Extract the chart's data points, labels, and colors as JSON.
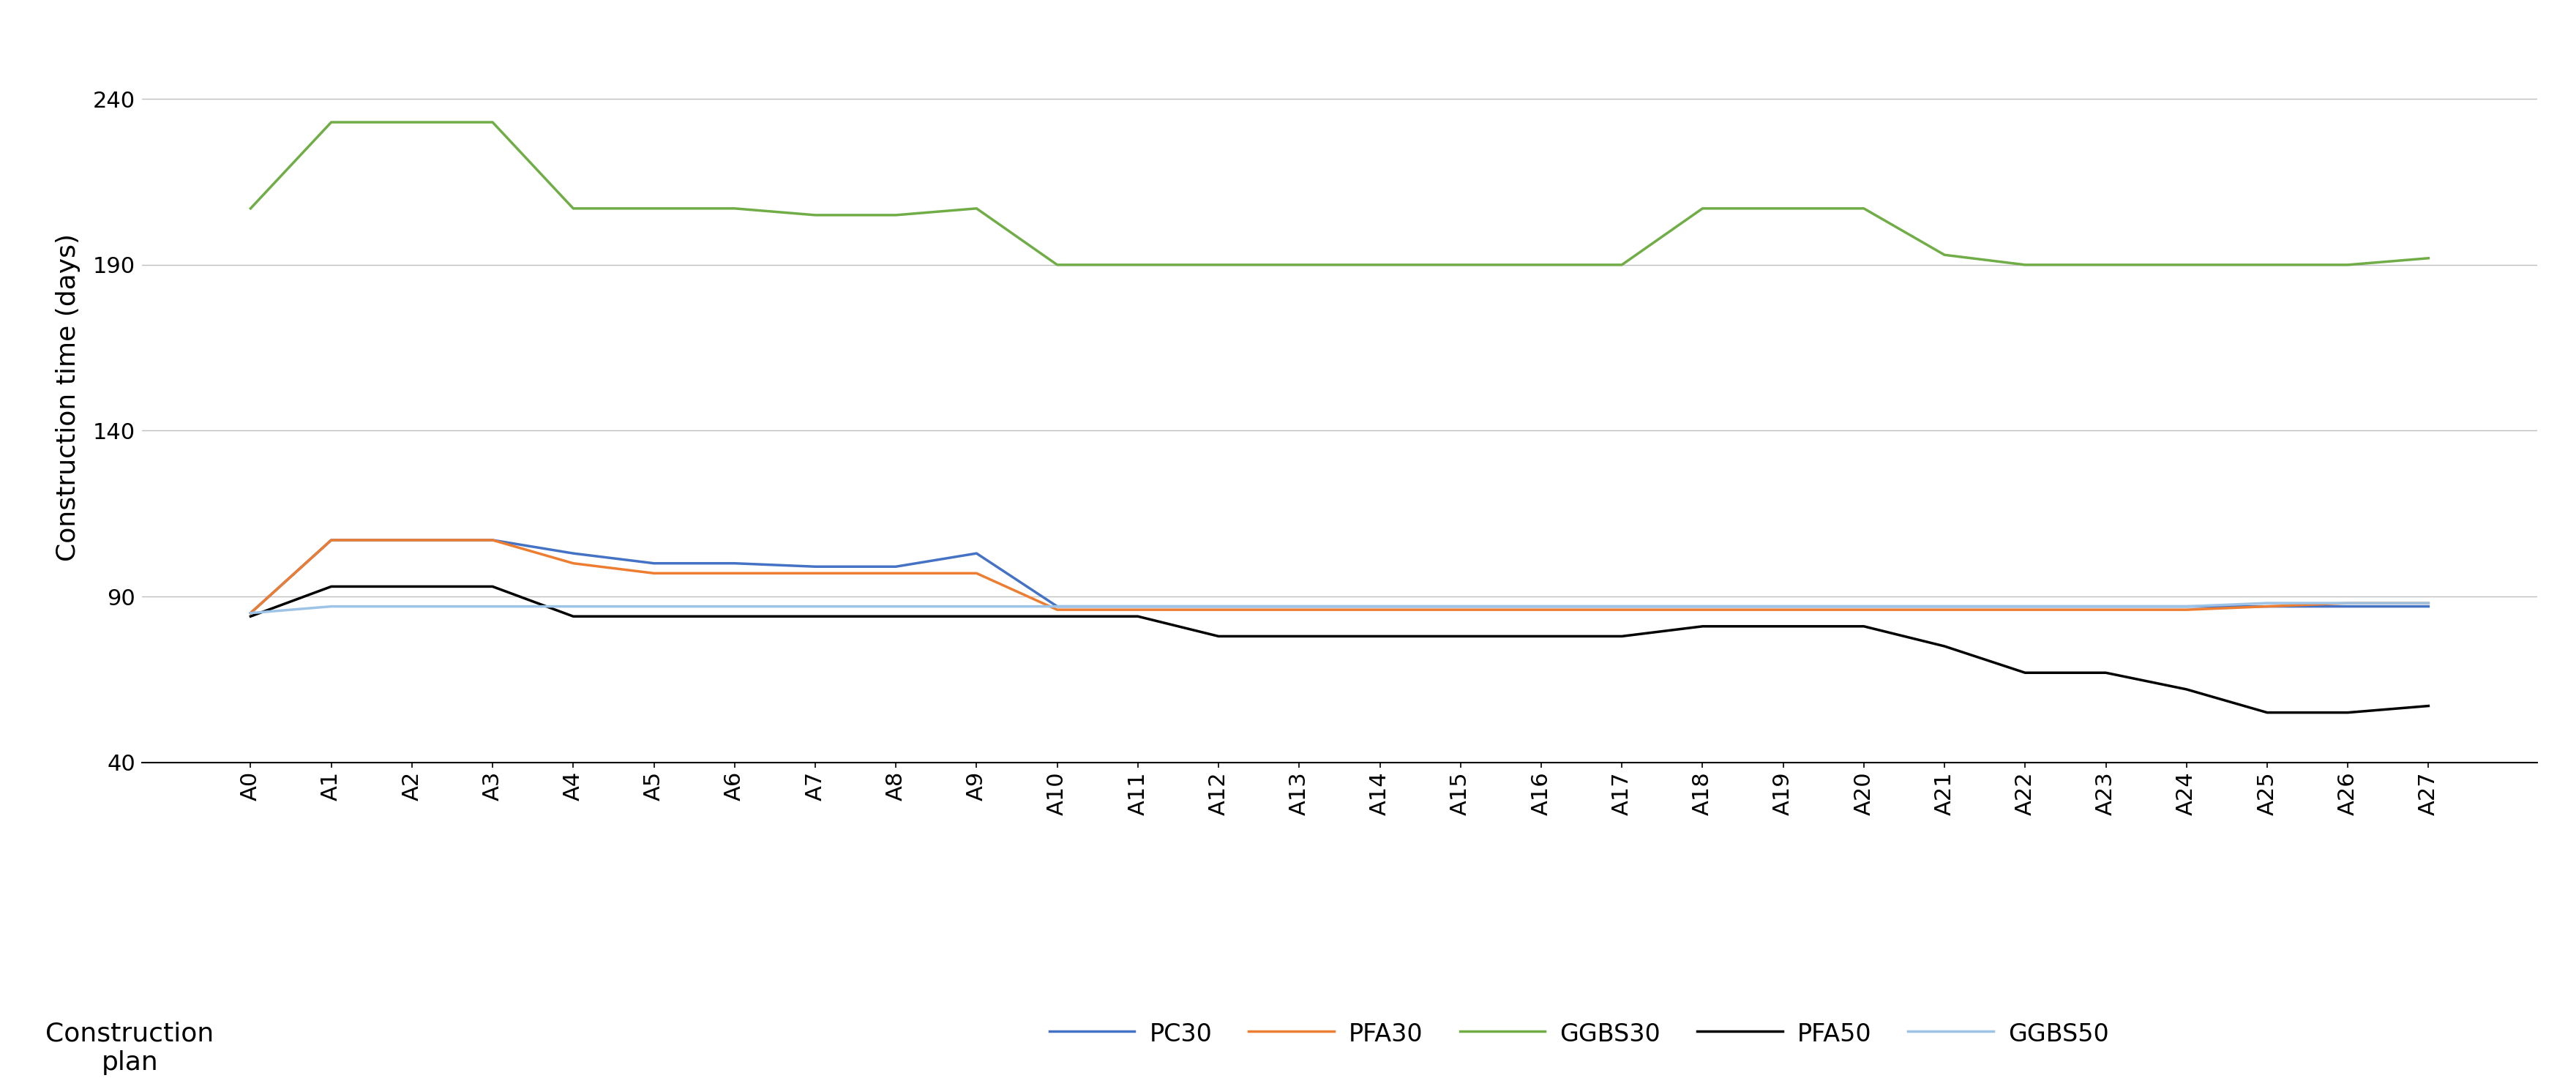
{
  "categories": [
    "A0",
    "A1",
    "A2",
    "A3",
    "A4",
    "A5",
    "A6",
    "A7",
    "A8",
    "A9",
    "A10",
    "A11",
    "A12",
    "A13",
    "A14",
    "A15",
    "A16",
    "A17",
    "A18",
    "A19",
    "A20",
    "A21",
    "A22",
    "A23",
    "A24",
    "A25",
    "A26",
    "A27"
  ],
  "PC30": [
    85,
    107,
    107,
    107,
    103,
    100,
    100,
    99,
    99,
    103,
    87,
    87,
    87,
    87,
    87,
    87,
    87,
    87,
    87,
    87,
    87,
    87,
    87,
    87,
    87,
    87,
    87,
    87
  ],
  "PFA30": [
    85,
    107,
    107,
    107,
    100,
    97,
    97,
    97,
    97,
    97,
    86,
    86,
    86,
    86,
    86,
    86,
    86,
    86,
    86,
    86,
    86,
    86,
    86,
    86,
    86,
    87,
    88,
    88
  ],
  "GGBS30": [
    207,
    233,
    233,
    233,
    207,
    207,
    207,
    205,
    205,
    207,
    190,
    190,
    190,
    190,
    190,
    190,
    190,
    190,
    207,
    207,
    207,
    193,
    190,
    190,
    190,
    190,
    190,
    192
  ],
  "PFA50": [
    84,
    93,
    93,
    93,
    84,
    84,
    84,
    84,
    84,
    84,
    84,
    84,
    78,
    78,
    78,
    78,
    78,
    78,
    81,
    81,
    81,
    75,
    67,
    67,
    62,
    55,
    55,
    57
  ],
  "GGBS50": [
    85,
    87,
    87,
    87,
    87,
    87,
    87,
    87,
    87,
    87,
    87,
    87,
    87,
    87,
    87,
    87,
    87,
    87,
    87,
    87,
    87,
    87,
    87,
    87,
    87,
    88,
    88,
    88
  ],
  "colors": {
    "PC30": "#4472C4",
    "PFA30": "#ED7D31",
    "GGBS30": "#70AD47",
    "PFA50": "#000000",
    "GGBS50": "#9DC3E6"
  },
  "ylabel": "Construction time (days)",
  "xlabel_line1": "Construction",
  "xlabel_line2": "plan",
  "yticks": [
    40,
    90,
    140,
    190,
    240
  ],
  "ylim": [
    40,
    260
  ],
  "line_width": 2.5,
  "legend_entries": [
    "PC30",
    "PFA30",
    "GGBS30",
    "PFA50",
    "GGBS50"
  ],
  "figwidth_in": 35.2,
  "figheight_in": 14.88,
  "dpi": 100
}
